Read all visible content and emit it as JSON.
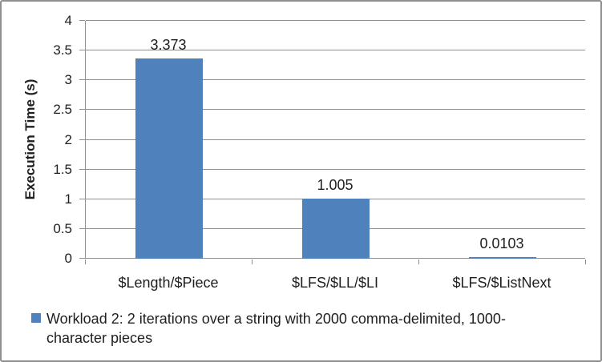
{
  "chart_data": {
    "type": "bar",
    "title": "",
    "categories": [
      "$Length/$Piece",
      "$LFS/$LL/$LI",
      "$LFS/$ListNext"
    ],
    "values": [
      3.373,
      1.005,
      0.0103
    ],
    "value_labels": [
      "3.373",
      "1.005",
      "0.0103"
    ],
    "series": [
      {
        "name": "Workload 2: 2 iterations over a string with 2000 comma-delimited, 1000-character pieces",
        "values": [
          3.373,
          1.005,
          0.0103
        ]
      }
    ],
    "xlabel": "",
    "ylabel": "Execution Time (s)",
    "ylim": [
      0,
      4
    ],
    "ytick_step": 0.5,
    "yticks": [
      0,
      0.5,
      1,
      1.5,
      2,
      2.5,
      3,
      3.5,
      4
    ],
    "grid": "horizontal",
    "legend_position": "bottom-left",
    "colors": {
      "bar": "#4f81bd",
      "grid": "#8f8f8f",
      "axis": "#8f8f8f",
      "text": "#1f1f1f",
      "border": "#8f8f8f"
    }
  },
  "legend": {
    "lines": [
      "Workload 2: 2 iterations over a string with 2000 comma-delimited, 1000-",
      "character pieces"
    ]
  }
}
